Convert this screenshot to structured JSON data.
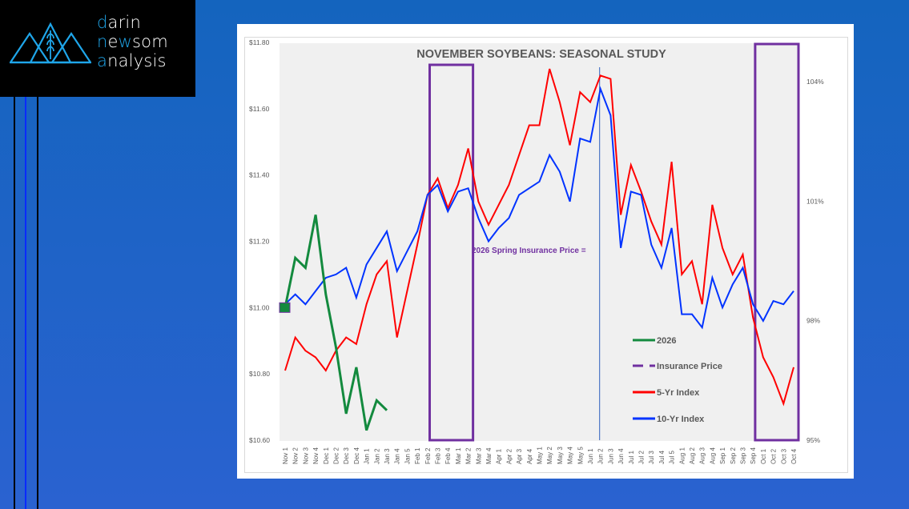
{
  "logo": {
    "lines": [
      {
        "first": "d",
        "rest": "arin"
      },
      {
        "first": "n",
        "mid_plain": "e",
        "mid_hl": "w",
        "rest": "som"
      },
      {
        "first": "a",
        "rest": "nalysis"
      }
    ],
    "accent_color": "#1fa6ea"
  },
  "chart_data": {
    "type": "line",
    "title": "NOVEMBER SOYBEANS: SEASONAL STUDY",
    "annotation": "2026 Spring Insurance Price =",
    "xlabel": "",
    "ylabel": "",
    "y_left": {
      "ticks": [
        "$11.80",
        "$11.60",
        "$11.40",
        "$11.20",
        "$11.00",
        "$10.80",
        "$10.60"
      ],
      "range": [
        10.6,
        11.8
      ]
    },
    "y_right": {
      "ticks": [
        "104%",
        "101%",
        "98%",
        "95%"
      ],
      "range": [
        95,
        104.5
      ]
    },
    "grid": false,
    "legend_position": "bottom-right",
    "categories": [
      "Nov 1",
      "Nov 2",
      "Nov 3",
      "Nov 4",
      "Dec 1",
      "Dec 2",
      "Dec 3",
      "Dec 4",
      "Jan 1",
      "Jan 2",
      "Jan 3",
      "Jan 4",
      "Jan 5",
      "Feb 1",
      "Feb 2",
      "Feb 3",
      "Feb 4",
      "Mar 1",
      "Mar 2",
      "Mar 3",
      "Mar 4",
      "Apr 1",
      "Apr 2",
      "Apr 3",
      "Apr 4",
      "May 1",
      "May 2",
      "May 3",
      "May 4",
      "May 5",
      "Jun 1",
      "Jun 2",
      "Jun 3",
      "Jun 4",
      "Jul 1",
      "Jul 2",
      "Jul 3",
      "Jul 4",
      "Jul 5",
      "Aug 1",
      "Aug 2",
      "Aug 3",
      "Aug 4",
      "Sep 1",
      "Sep 2",
      "Sep 3",
      "Sep 4",
      "Oct 1",
      "Oct 2",
      "Oct 3",
      "Oct 4"
    ],
    "series": [
      {
        "name": "2026",
        "color": "#138a3e",
        "axis": "left",
        "values": [
          11.0,
          11.15,
          11.12,
          11.28,
          11.04,
          10.88,
          10.68,
          10.82,
          10.63,
          10.72,
          10.69
        ]
      },
      {
        "name": "Insurance Price",
        "color": "#7030a0",
        "axis": "left",
        "dashed": true,
        "values": []
      },
      {
        "name": "5-Yr Index",
        "color": "#ff0000",
        "axis": "left",
        "values": [
          10.81,
          10.91,
          10.87,
          10.85,
          10.81,
          10.87,
          10.91,
          10.89,
          11.01,
          11.1,
          11.14,
          10.91,
          11.05,
          11.19,
          11.34,
          11.39,
          11.3,
          11.37,
          11.48,
          11.32,
          11.25,
          11.31,
          11.37,
          11.46,
          11.55,
          11.55,
          11.72,
          11.62,
          11.49,
          11.65,
          11.62,
          11.7,
          11.69,
          11.28,
          11.43,
          11.35,
          11.26,
          11.19,
          11.44,
          11.1,
          11.14,
          11.01,
          11.31,
          11.18,
          11.1,
          11.16,
          10.97,
          10.85,
          10.79,
          10.71,
          10.82
        ]
      },
      {
        "name": "10-Yr Index",
        "color": "#0033ff",
        "axis": "left",
        "values": [
          11.01,
          11.04,
          11.01,
          11.05,
          11.09,
          11.1,
          11.12,
          11.03,
          11.13,
          11.18,
          11.23,
          11.11,
          11.17,
          11.23,
          11.34,
          11.37,
          11.29,
          11.35,
          11.36,
          11.27,
          11.2,
          11.24,
          11.27,
          11.34,
          11.36,
          11.38,
          11.46,
          11.41,
          11.32,
          11.51,
          11.5,
          11.66,
          11.58,
          11.18,
          11.35,
          11.34,
          11.19,
          11.12,
          11.24,
          10.98,
          10.98,
          10.94,
          11.09,
          11.0,
          11.07,
          11.12,
          11.01,
          10.96,
          11.02,
          11.01,
          11.05
        ]
      }
    ],
    "highlight_boxes": [
      {
        "from": "Feb 3",
        "to": "Mar 2",
        "color": "#7030a0"
      },
      {
        "from": "Oct 1",
        "to": "Oct 4",
        "color": "#7030a0"
      }
    ],
    "vertical_marker": {
      "at": "Jun 2",
      "color": "#2e5fbf"
    },
    "start_marker": {
      "at": "Nov 1",
      "value": 11.0,
      "color": "#138a3e"
    }
  }
}
